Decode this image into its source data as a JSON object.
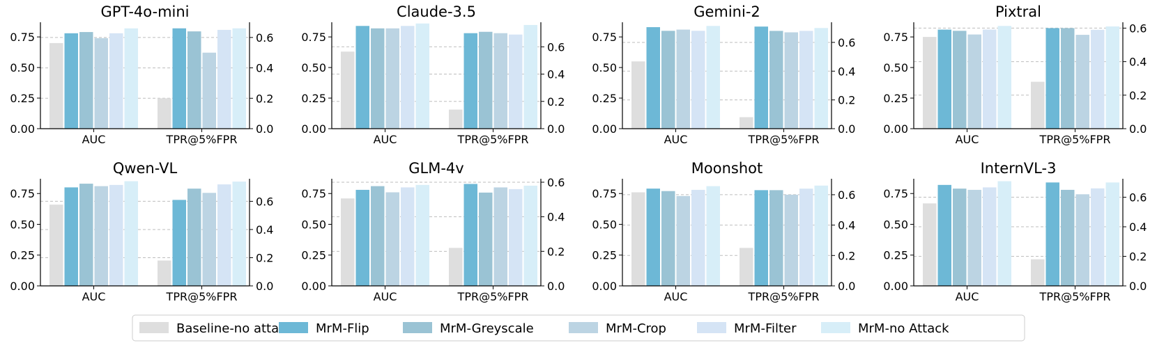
{
  "legend": {
    "entries": [
      "Baseline-no attack",
      "MrM-Flip",
      "MrM-Greyscale",
      "MrM-Crop",
      "MrM-Filter",
      "MrM-no Attack"
    ],
    "colors": [
      "#dedede",
      "#6db8d6",
      "#9ac3d4",
      "#bcd4e3",
      "#d5e4f5",
      "#d7eef8"
    ],
    "placement": "bottom-center"
  },
  "chart_data": [
    {
      "type": "bar",
      "title": "GPT-4o-mini",
      "categories": [
        "AUC",
        "TPR@5%FPR"
      ],
      "left_axis": {
        "ylim": [
          0,
          0.87
        ],
        "ticks": [
          "0.00",
          "0.25",
          "0.50",
          "0.75"
        ],
        "tick_values": [
          0,
          0.25,
          0.5,
          0.75
        ]
      },
      "right_axis": {
        "ylim": [
          0,
          0.7
        ],
        "ticks": [
          "0.0",
          "0.2",
          "0.4",
          "0.6"
        ],
        "tick_values": [
          0,
          0.2,
          0.4,
          0.6
        ]
      },
      "series": [
        {
          "name": "Baseline-no attack",
          "values": [
            0.7,
            0.2
          ]
        },
        {
          "name": "MrM-Flip",
          "values": [
            0.78,
            0.66
          ]
        },
        {
          "name": "MrM-Greyscale",
          "values": [
            0.79,
            0.64
          ]
        },
        {
          "name": "MrM-Crop",
          "values": [
            0.74,
            0.5
          ]
        },
        {
          "name": "MrM-Filter",
          "values": [
            0.78,
            0.65
          ]
        },
        {
          "name": "MrM-no Attack",
          "values": [
            0.82,
            0.66
          ]
        }
      ]
    },
    {
      "type": "bar",
      "title": "Claude-3.5",
      "categories": [
        "AUC",
        "TPR@5%FPR"
      ],
      "left_axis": {
        "ylim": [
          0,
          0.87
        ],
        "ticks": [
          "0.00",
          "0.25",
          "0.50",
          "0.75"
        ],
        "tick_values": [
          0,
          0.25,
          0.5,
          0.75
        ]
      },
      "right_axis": {
        "ylim": [
          0,
          0.78
        ],
        "ticks": [
          "0.0",
          "0.2",
          "0.4",
          "0.6"
        ],
        "tick_values": [
          0,
          0.2,
          0.4,
          0.6
        ]
      },
      "series": [
        {
          "name": "Baseline-no attack",
          "values": [
            0.63,
            0.14
          ]
        },
        {
          "name": "MrM-Flip",
          "values": [
            0.84,
            0.7
          ]
        },
        {
          "name": "MrM-Greyscale",
          "values": [
            0.82,
            0.71
          ]
        },
        {
          "name": "MrM-Crop",
          "values": [
            0.82,
            0.7
          ]
        },
        {
          "name": "MrM-Filter",
          "values": [
            0.84,
            0.69
          ]
        },
        {
          "name": "MrM-no Attack",
          "values": [
            0.86,
            0.76
          ]
        }
      ]
    },
    {
      "type": "bar",
      "title": "Gemini-2",
      "categories": [
        "AUC",
        "TPR@5%FPR"
      ],
      "left_axis": {
        "ylim": [
          0,
          0.87
        ],
        "ticks": [
          "0.00",
          "0.25",
          "0.50",
          "0.75"
        ],
        "tick_values": [
          0,
          0.25,
          0.5,
          0.75
        ]
      },
      "right_axis": {
        "ylim": [
          0,
          0.74
        ],
        "ticks": [
          "0.0",
          "0.2",
          "0.4",
          "0.6"
        ],
        "tick_values": [
          0,
          0.2,
          0.4,
          0.6
        ]
      },
      "series": [
        {
          "name": "Baseline-no attack",
          "values": [
            0.55,
            0.08
          ]
        },
        {
          "name": "MrM-Flip",
          "values": [
            0.83,
            0.71
          ]
        },
        {
          "name": "MrM-Greyscale",
          "values": [
            0.8,
            0.68
          ]
        },
        {
          "name": "MrM-Crop",
          "values": [
            0.81,
            0.67
          ]
        },
        {
          "name": "MrM-Filter",
          "values": [
            0.8,
            0.68
          ]
        },
        {
          "name": "MrM-no Attack",
          "values": [
            0.84,
            0.7
          ]
        }
      ]
    },
    {
      "type": "bar",
      "title": "Pixtral",
      "categories": [
        "AUC",
        "TPR@5%FPR"
      ],
      "left_axis": {
        "ylim": [
          0,
          0.87
        ],
        "ticks": [
          "0.00",
          "0.25",
          "0.50",
          "0.75"
        ],
        "tick_values": [
          0,
          0.25,
          0.5,
          0.75
        ]
      },
      "right_axis": {
        "ylim": [
          0,
          0.635
        ],
        "ticks": [
          "0.0",
          "0.2",
          "0.4",
          "0.6"
        ],
        "tick_values": [
          0,
          0.2,
          0.4,
          0.6
        ]
      },
      "series": [
        {
          "name": "Baseline-no attack",
          "values": [
            0.75,
            0.28
          ]
        },
        {
          "name": "MrM-Flip",
          "values": [
            0.81,
            0.6
          ]
        },
        {
          "name": "MrM-Greyscale",
          "values": [
            0.8,
            0.6
          ]
        },
        {
          "name": "MrM-Crop",
          "values": [
            0.77,
            0.56
          ]
        },
        {
          "name": "MrM-Filter",
          "values": [
            0.81,
            0.59
          ]
        },
        {
          "name": "MrM-no Attack",
          "values": [
            0.84,
            0.61
          ]
        }
      ]
    },
    {
      "type": "bar",
      "title": "Qwen-VL",
      "categories": [
        "AUC",
        "TPR@5%FPR"
      ],
      "left_axis": {
        "ylim": [
          0,
          0.87
        ],
        "ticks": [
          "0.00",
          "0.25",
          "0.50",
          "0.75"
        ],
        "tick_values": [
          0,
          0.25,
          0.5,
          0.75
        ]
      },
      "right_axis": {
        "ylim": [
          0,
          0.76
        ],
        "ticks": [
          "0.0",
          "0.2",
          "0.4",
          "0.6"
        ],
        "tick_values": [
          0,
          0.2,
          0.4,
          0.6
        ]
      },
      "series": [
        {
          "name": "Baseline-no attack",
          "values": [
            0.66,
            0.18
          ]
        },
        {
          "name": "MrM-Flip",
          "values": [
            0.8,
            0.61
          ]
        },
        {
          "name": "MrM-Greyscale",
          "values": [
            0.83,
            0.69
          ]
        },
        {
          "name": "MrM-Crop",
          "values": [
            0.81,
            0.66
          ]
        },
        {
          "name": "MrM-Filter",
          "values": [
            0.82,
            0.72
          ]
        },
        {
          "name": "MrM-no Attack",
          "values": [
            0.85,
            0.74
          ]
        }
      ]
    },
    {
      "type": "bar",
      "title": "GLM-4v",
      "categories": [
        "AUC",
        "TPR@5%FPR"
      ],
      "left_axis": {
        "ylim": [
          0,
          0.87
        ],
        "ticks": [
          "0.00",
          "0.25",
          "0.50",
          "0.75"
        ],
        "tick_values": [
          0,
          0.25,
          0.5,
          0.75
        ]
      },
      "right_axis": {
        "ylim": [
          0,
          0.62
        ],
        "ticks": [
          "0.0",
          "0.2",
          "0.4",
          "0.6"
        ],
        "tick_values": [
          0,
          0.2,
          0.4,
          0.6
        ]
      },
      "series": [
        {
          "name": "Baseline-no attack",
          "values": [
            0.71,
            0.22
          ]
        },
        {
          "name": "MrM-Flip",
          "values": [
            0.78,
            0.59
          ]
        },
        {
          "name": "MrM-Greyscale",
          "values": [
            0.81,
            0.54
          ]
        },
        {
          "name": "MrM-Crop",
          "values": [
            0.76,
            0.57
          ]
        },
        {
          "name": "MrM-Filter",
          "values": [
            0.8,
            0.56
          ]
        },
        {
          "name": "MrM-no Attack",
          "values": [
            0.82,
            0.58
          ]
        }
      ]
    },
    {
      "type": "bar",
      "title": "Moonshot",
      "categories": [
        "AUC",
        "TPR@5%FPR"
      ],
      "left_axis": {
        "ylim": [
          0,
          0.87
        ],
        "ticks": [
          "0.00",
          "0.25",
          "0.50",
          "0.75"
        ],
        "tick_values": [
          0,
          0.25,
          0.5,
          0.75
        ]
      },
      "right_axis": {
        "ylim": [
          0,
          0.705
        ],
        "ticks": [
          "0.0",
          "0.2",
          "0.4",
          "0.6"
        ],
        "tick_values": [
          0,
          0.2,
          0.4,
          0.6
        ]
      },
      "series": [
        {
          "name": "Baseline-no attack",
          "values": [
            0.76,
            0.25
          ]
        },
        {
          "name": "MrM-Flip",
          "values": [
            0.79,
            0.63
          ]
        },
        {
          "name": "MrM-Greyscale",
          "values": [
            0.77,
            0.63
          ]
        },
        {
          "name": "MrM-Crop",
          "values": [
            0.73,
            0.6
          ]
        },
        {
          "name": "MrM-Filter",
          "values": [
            0.78,
            0.64
          ]
        },
        {
          "name": "MrM-no Attack",
          "values": [
            0.81,
            0.66
          ]
        }
      ]
    },
    {
      "type": "bar",
      "title": "InternVL-3",
      "categories": [
        "AUC",
        "TPR@5%FPR"
      ],
      "left_axis": {
        "ylim": [
          0,
          0.87
        ],
        "ticks": [
          "0.00",
          "0.25",
          "0.50",
          "0.75"
        ],
        "tick_values": [
          0,
          0.25,
          0.5,
          0.75
        ]
      },
      "right_axis": {
        "ylim": [
          0,
          0.725
        ],
        "ticks": [
          "0.0",
          "0.2",
          "0.4",
          "0.6"
        ],
        "tick_values": [
          0,
          0.2,
          0.4,
          0.6
        ]
      },
      "series": [
        {
          "name": "Baseline-no attack",
          "values": [
            0.67,
            0.18
          ]
        },
        {
          "name": "MrM-Flip",
          "values": [
            0.82,
            0.7
          ]
        },
        {
          "name": "MrM-Greyscale",
          "values": [
            0.79,
            0.65
          ]
        },
        {
          "name": "MrM-Crop",
          "values": [
            0.78,
            0.62
          ]
        },
        {
          "name": "MrM-Filter",
          "values": [
            0.8,
            0.66
          ]
        },
        {
          "name": "MrM-no Attack",
          "values": [
            0.85,
            0.7
          ]
        }
      ]
    }
  ]
}
